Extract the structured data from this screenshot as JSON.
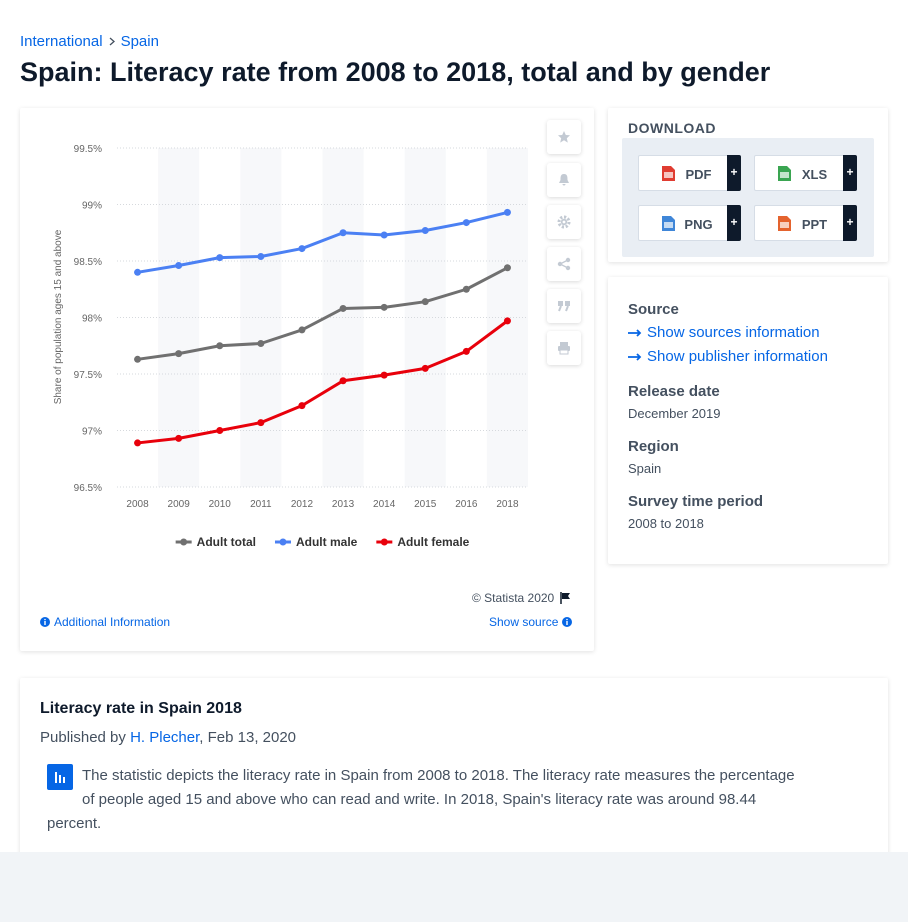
{
  "breadcrumb": [
    "International",
    "Spain"
  ],
  "title": "Spain: Literacy rate from 2008 to 2018, total and by gender",
  "chart_data": {
    "type": "line",
    "y_label": "Share of population ages 15 and above",
    "categories": [
      "2008",
      "2009",
      "2010",
      "2011",
      "2012",
      "2013",
      "2014",
      "2015",
      "2016",
      "2018"
    ],
    "series": [
      {
        "name": "Adult total",
        "color": "#707070",
        "values": [
          97.63,
          97.68,
          97.75,
          97.77,
          97.89,
          98.08,
          98.09,
          98.14,
          98.25,
          98.44
        ]
      },
      {
        "name": "Adult male",
        "color": "#4b80f3",
        "values": [
          98.4,
          98.46,
          98.53,
          98.54,
          98.61,
          98.75,
          98.73,
          98.77,
          98.84,
          98.93
        ]
      },
      {
        "name": "Adult female",
        "color": "#e8000b",
        "values": [
          96.89,
          96.93,
          97.0,
          97.07,
          97.22,
          97.44,
          97.49,
          97.55,
          97.7,
          97.97
        ]
      }
    ],
    "ylim": [
      96.5,
      99.5
    ],
    "yticks": [
      {
        "value": 96.5,
        "label": "96.5%"
      },
      {
        "value": 97,
        "label": "97%"
      },
      {
        "value": 97.5,
        "label": "97.5%"
      },
      {
        "value": 98,
        "label": "98%"
      },
      {
        "value": 98.5,
        "label": "98.5%"
      },
      {
        "value": 99,
        "label": "99%"
      },
      {
        "value": 99.5,
        "label": "99.5%"
      }
    ],
    "grid": true,
    "legend": "bottom",
    "credit": "© Statista 2020"
  },
  "chart_links": {
    "additional": "Additional Information",
    "show_source": "Show source"
  },
  "download": {
    "title": "DOWNLOAD",
    "buttons": [
      "PDF",
      "XLS",
      "PNG",
      "PPT"
    ],
    "plus": "+"
  },
  "meta": {
    "source_heading": "Source",
    "source_links": [
      "Show sources information",
      "Show publisher information"
    ],
    "items": [
      {
        "label": "Release date",
        "value": "December 2019"
      },
      {
        "label": "Region",
        "value": "Spain"
      },
      {
        "label": "Survey time period",
        "value": "2008 to 2018"
      }
    ]
  },
  "article": {
    "heading": "Literacy rate in Spain 2018",
    "published_prefix": "Published by",
    "author": "H. Plecher",
    "published_suffix": ", Feb 13, 2020",
    "text": "The statistic depicts the literacy rate in Spain from 2008 to 2018. The literacy rate measures the percentage of people aged 15 and above who can read and write. In 2018, Spain's literacy rate was around 98.44 percent."
  }
}
